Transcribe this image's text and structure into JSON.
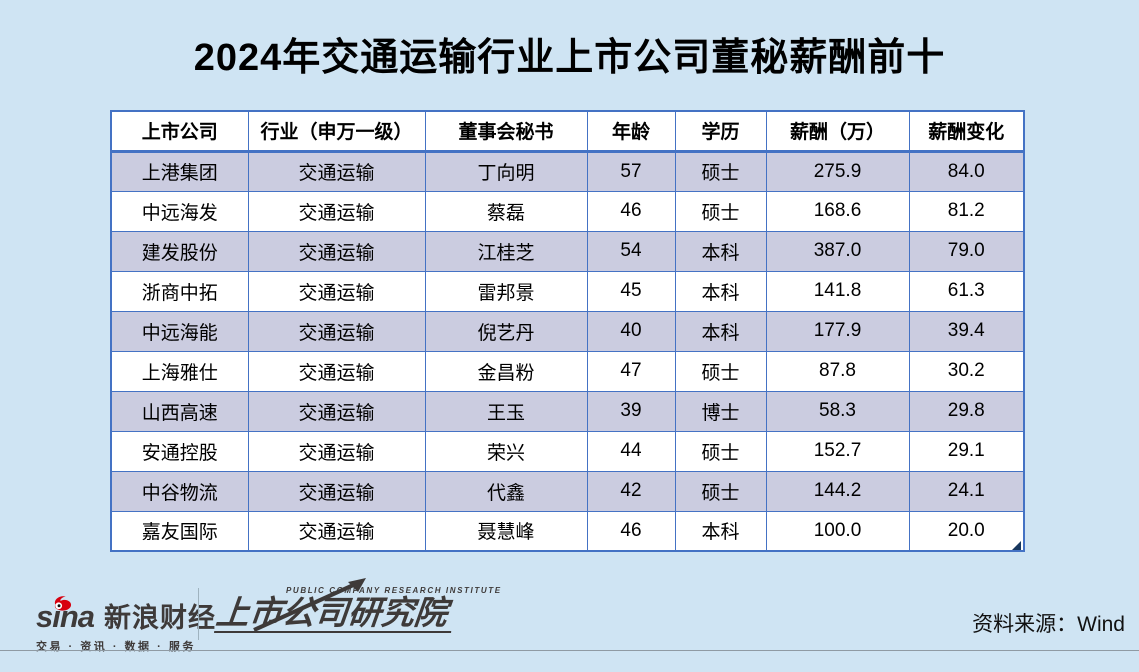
{
  "title": "2024年交通运输行业上市公司董秘薪酬前十",
  "table": {
    "headers": [
      "上市公司",
      "行业（申万一级）",
      "董事会秘书",
      "年龄",
      "学历",
      "薪酬（万）",
      "薪酬变化"
    ],
    "rows": [
      [
        "上港集团",
        "交通运输",
        "丁向明",
        "57",
        "硕士",
        "275.9",
        "84.0"
      ],
      [
        "中远海发",
        "交通运输",
        "蔡磊",
        "46",
        "硕士",
        "168.6",
        "81.2"
      ],
      [
        "建发股份",
        "交通运输",
        "江桂芝",
        "54",
        "本科",
        "387.0",
        "79.0"
      ],
      [
        "浙商中拓",
        "交通运输",
        "雷邦景",
        "45",
        "本科",
        "141.8",
        "61.3"
      ],
      [
        "中远海能",
        "交通运输",
        "倪艺丹",
        "40",
        "本科",
        "177.9",
        "39.4"
      ],
      [
        "上海雅仕",
        "交通运输",
        "金昌粉",
        "47",
        "硕士",
        "87.8",
        "30.2"
      ],
      [
        "山西高速",
        "交通运输",
        "王玉",
        "39",
        "博士",
        "58.3",
        "29.8"
      ],
      [
        "安通控股",
        "交通运输",
        "荣兴",
        "44",
        "硕士",
        "152.7",
        "29.1"
      ],
      [
        "中谷物流",
        "交通运输",
        "代鑫",
        "42",
        "硕士",
        "144.2",
        "24.1"
      ],
      [
        "嘉友国际",
        "交通运输",
        "聂慧峰",
        "46",
        "本科",
        "100.0",
        "20.0"
      ]
    ]
  },
  "footer": {
    "sina_word": "sina",
    "sina_cn": "新浪财经",
    "sina_tagline": "交易 · 资讯 · 数据 · 服务",
    "institute_en": "PUBLIC COMPANY RESEARCH INSTITUTE",
    "institute_cn": "上市公司研究院",
    "source": "资料来源：Wind"
  },
  "colors": {
    "page_background": "#cfe4f3",
    "row_alt": "#cbcce0",
    "row_default": "#ffffff",
    "table_border": "#4472c4",
    "corner_marker": "#17375e",
    "logo_dark": "#3e3a39",
    "sina_red": "#d7000f"
  }
}
